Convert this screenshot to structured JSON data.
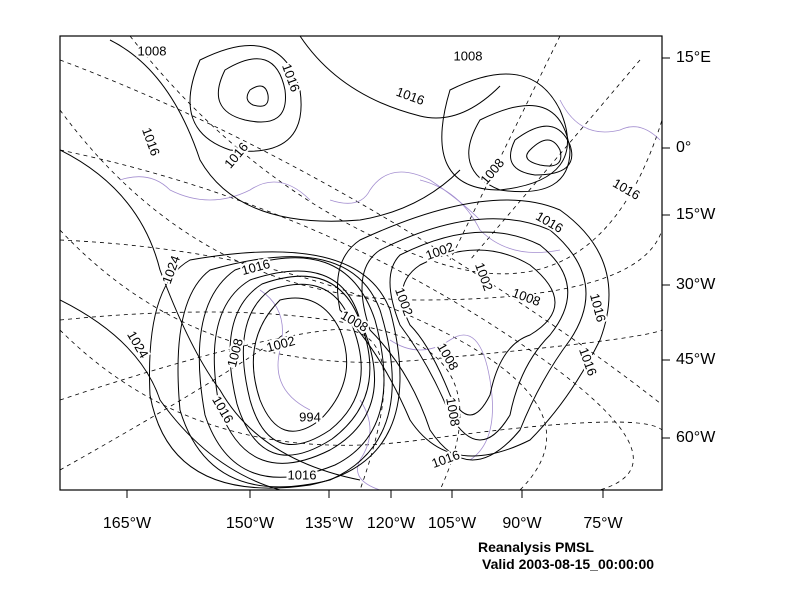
{
  "map": {
    "lat_labels": [
      "15°E",
      "0°",
      "15°W",
      "30°W",
      "45°W",
      "60°W"
    ],
    "lon_labels": [
      "165°W",
      "150°W",
      "135°W",
      "120°W",
      "105°W",
      "90°W",
      "75°W"
    ],
    "contour_labels": [
      "1008",
      "1016",
      "1016",
      "1008",
      "1016",
      "1016",
      "1008",
      "1016",
      "1016",
      "1024",
      "1016",
      "1002",
      "1002",
      "1008",
      "1016",
      "1024",
      "1008",
      "1002",
      "1002",
      "1008",
      "1008",
      "1016",
      "1016",
      "994",
      "1008",
      "1016",
      "1016"
    ],
    "contour_color": "#000000",
    "coastline_color": "#a48fd0"
  },
  "title": {
    "line1": "Reanalysis PMSL",
    "line2": "Valid 2003-08-15_00:00:00"
  }
}
